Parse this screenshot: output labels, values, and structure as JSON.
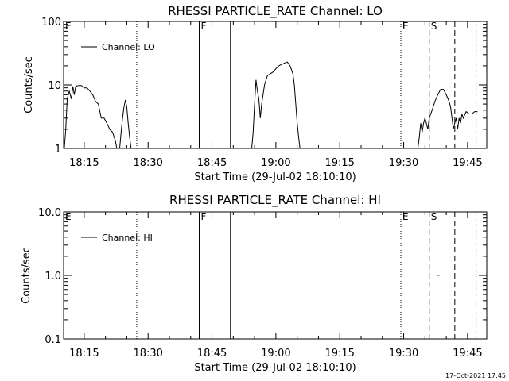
{
  "footer_timestamp": "17-Oct-2021 17:45",
  "chart_data": [
    {
      "type": "line",
      "title": "RHESSI PARTICLE_RATE Channel: LO",
      "xlabel": "Start Time (29-Jul-02 18:10:10)",
      "ylabel": "Counts/sec",
      "yscale": "log",
      "ylim": [
        1,
        100
      ],
      "xlim": [
        "18:10:10",
        "19:49:30"
      ],
      "x_ticks": [
        "18:15",
        "18:30",
        "18:45",
        "19:00",
        "19:15",
        "19:30",
        "19:45"
      ],
      "y_ticks": [
        "1",
        "10",
        "100"
      ],
      "legend": {
        "entries": [
          "Channel: LO"
        ],
        "position": "top-left"
      },
      "markers": [
        {
          "label": "E",
          "time": "18:10:10",
          "style": "dotted"
        },
        {
          "label": "",
          "time": "18:27:20",
          "style": "dotted"
        },
        {
          "label": "F",
          "time": "18:42:00",
          "style": "solid"
        },
        {
          "label": "",
          "time": "18:49:20",
          "style": "solid"
        },
        {
          "label": "E",
          "time": "19:29:20",
          "style": "dotted"
        },
        {
          "label": "S",
          "time": "19:36:00",
          "style": "dashed"
        },
        {
          "label": "",
          "time": "19:42:00",
          "style": "dashed"
        },
        {
          "label": "",
          "time": "19:47:00",
          "style": "dotted"
        }
      ],
      "series": [
        {
          "name": "Channel: LO",
          "segments": [
            {
              "times": [
                "18:10:20",
                "18:10:40",
                "18:11:00",
                "18:11:30",
                "18:12:00",
                "18:12:20",
                "18:12:40",
                "18:13:00",
                "18:13:40",
                "18:14:20",
                "18:15:00",
                "18:15:40",
                "18:16:20",
                "18:17:00",
                "18:17:40",
                "18:18:20",
                "18:19:00",
                "18:19:40",
                "18:20:20",
                "18:21:00",
                "18:21:40",
                "18:22:20",
                "18:22:40"
              ],
              "values": [
                1.0,
                2.0,
                6.0,
                8.0,
                6.0,
                9.5,
                7.0,
                9.5,
                9.8,
                9.8,
                9.0,
                9.0,
                8.0,
                7.0,
                5.5,
                5.0,
                3.0,
                3.0,
                2.5,
                2.0,
                1.8,
                1.3,
                1.0
              ]
            },
            {
              "times": [
                "18:23:20",
                "18:23:40",
                "18:24:00",
                "18:24:20",
                "18:24:40",
                "18:25:00",
                "18:25:20",
                "18:25:40",
                "18:26:00"
              ],
              "values": [
                1.0,
                1.8,
                3.0,
                4.5,
                5.8,
                4.5,
                2.5,
                1.5,
                1.0
              ]
            },
            {
              "times": [
                "18:54:20",
                "18:54:40",
                "18:55:00",
                "18:55:20",
                "18:55:40",
                "18:56:00",
                "18:56:20",
                "18:56:40",
                "18:57:20",
                "18:58:00",
                "18:58:40",
                "18:59:20",
                "19:00:00",
                "19:00:40",
                "19:01:20",
                "19:02:00",
                "19:02:40",
                "19:03:20",
                "19:04:00",
                "19:04:20",
                "19:04:40",
                "19:05:00",
                "19:05:20",
                "19:05:40"
              ],
              "values": [
                1.0,
                1.8,
                5.0,
                12.0,
                8.0,
                6.0,
                3.0,
                5.0,
                10.0,
                14.0,
                15.0,
                16.0,
                18.0,
                20.0,
                21.0,
                22.0,
                23.0,
                20.0,
                15.0,
                10.0,
                5.0,
                2.5,
                1.5,
                1.0
              ]
            },
            {
              "times": [
                "19:33:20",
                "19:33:40",
                "19:34:00",
                "19:34:20",
                "19:34:40",
                "19:35:00",
                "19:35:20",
                "19:35:40",
                "19:36:00",
                "19:36:40",
                "19:37:20",
                "19:38:00",
                "19:38:40",
                "19:39:20",
                "19:40:00",
                "19:40:40",
                "19:41:00",
                "19:41:20",
                "19:41:40",
                "19:42:00",
                "19:42:20",
                "19:42:40",
                "19:43:00",
                "19:43:20",
                "19:43:40",
                "19:44:00",
                "19:44:40",
                "19:45:20",
                "19:46:00",
                "19:46:40",
                "19:47:20"
              ],
              "values": [
                1.0,
                1.5,
                2.5,
                1.8,
                2.5,
                3.0,
                2.5,
                2.0,
                3.0,
                4.0,
                5.5,
                7.0,
                8.5,
                8.5,
                7.0,
                5.5,
                4.5,
                3.0,
                2.0,
                2.5,
                3.0,
                2.0,
                3.0,
                2.5,
                3.5,
                3.0,
                3.8,
                3.5,
                3.5,
                3.8,
                3.8
              ]
            }
          ]
        }
      ]
    },
    {
      "type": "line",
      "title": "RHESSI PARTICLE_RATE Channel: HI",
      "xlabel": "Start Time (29-Jul-02 18:10:10)",
      "ylabel": "Counts/sec",
      "yscale": "log",
      "ylim": [
        0.1,
        10
      ],
      "xlim": [
        "18:10:10",
        "19:49:30"
      ],
      "x_ticks": [
        "18:15",
        "18:30",
        "18:45",
        "19:00",
        "19:15",
        "19:30",
        "19:45"
      ],
      "y_ticks": [
        "0.1",
        "1.0",
        "10.0"
      ],
      "legend": {
        "entries": [
          "Channel: HI"
        ],
        "position": "top-left"
      },
      "markers": [
        {
          "label": "E",
          "time": "18:10:10",
          "style": "dotted"
        },
        {
          "label": "",
          "time": "18:27:20",
          "style": "dotted"
        },
        {
          "label": "F",
          "time": "18:42:00",
          "style": "solid"
        },
        {
          "label": "",
          "time": "18:49:20",
          "style": "solid"
        },
        {
          "label": "E",
          "time": "19:29:20",
          "style": "dotted"
        },
        {
          "label": "S",
          "time": "19:36:00",
          "style": "dashed"
        },
        {
          "label": "",
          "time": "19:42:00",
          "style": "dashed"
        },
        {
          "label": "",
          "time": "19:47:00",
          "style": "dotted"
        }
      ],
      "series": [
        {
          "name": "Channel: HI",
          "segments": [
            {
              "times": [
                "19:38:00",
                "19:38:20"
              ],
              "values": [
                1.0,
                1.0
              ]
            }
          ]
        }
      ]
    }
  ]
}
